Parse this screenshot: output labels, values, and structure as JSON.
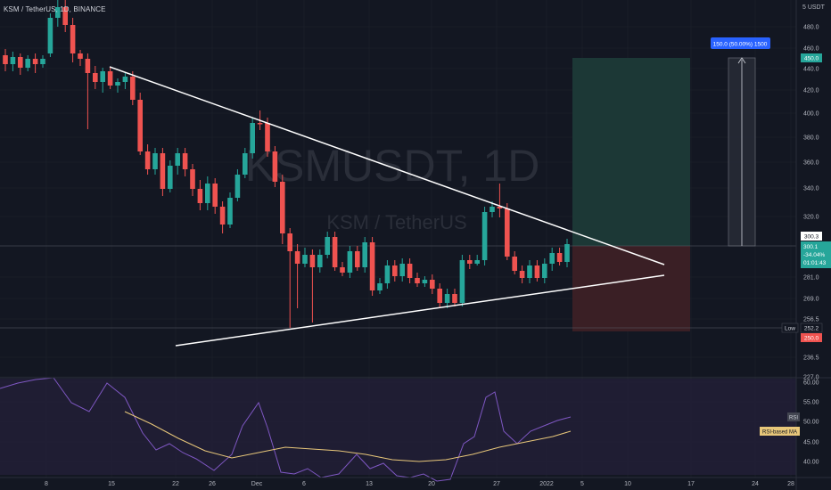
{
  "header": {
    "symbol_line": "KSM / TetherUS, 1D, BINANCE"
  },
  "currency": "5 USDT",
  "watermark": {
    "line1": "KSMUSDT, 1D",
    "line2": "KSM / TetherUS"
  },
  "price_axis": {
    "ticks": [
      "480.0",
      "460.0",
      "440.0",
      "420.0",
      "400.0",
      "380.0",
      "360.0",
      "340.0",
      "320.0",
      "281.0",
      "269.0",
      "256.5",
      "236.5"
    ],
    "tags": {
      "target": "450.0",
      "entry": "300.3",
      "last_price": "300.1",
      "last_change": "-34.04%",
      "countdown": "01:01:43",
      "low_label": "Low",
      "low_value": "252.2",
      "stop": "250.0"
    }
  },
  "rsi_axis": {
    "ticks": [
      "227.0",
      "60.00",
      "55.00",
      "50.00",
      "45.00",
      "40.00"
    ],
    "rsi_tag": "RSI",
    "rsi_ma_tag": "RSI-based MA"
  },
  "measure": {
    "label": "150.0 (50.00%) 1500"
  },
  "time_axis": [
    "8",
    "15",
    "22",
    "26",
    "Dec",
    "6",
    "13",
    "20",
    "27",
    "2022",
    "5",
    "10",
    "17",
    "24",
    "28"
  ],
  "colors": {
    "bg": "#131722",
    "up": "#26a69a",
    "down": "#ef5350",
    "target_zone": "#1c3836",
    "stop_zone": "#3a1f25",
    "rsi_band": "#24203a",
    "rsi_line": "#7e57c2",
    "rsi_ma": "#e8c77a",
    "measure_box": "#2962ff",
    "trendline": "#ffffff"
  },
  "icons": [
    "trendline-icon",
    "long-position-icon",
    "price-range-icon"
  ]
}
